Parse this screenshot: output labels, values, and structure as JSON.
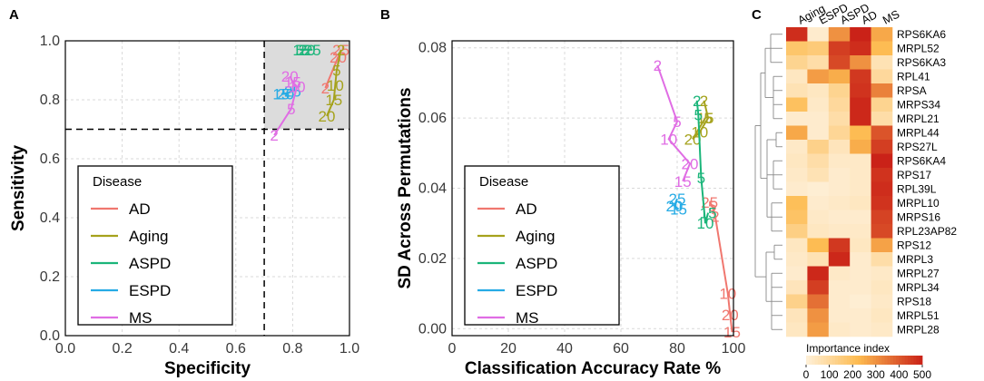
{
  "panel_letters": [
    "A",
    "B",
    "C"
  ],
  "colors": {
    "AD": "#f0776f",
    "Aging": "#a5a21c",
    "ASPD": "#1bb57a",
    "ESPD": "#26abe5",
    "MS": "#e06de4",
    "grid": "#d9d9d9",
    "shade": "#dcdcdc"
  },
  "chart_data": [
    {
      "id": "A",
      "type": "line",
      "xlabel": "Specificity",
      "ylabel": "Sensitivity",
      "xlim": [
        0.0,
        1.0
      ],
      "ylim": [
        0.0,
        1.0
      ],
      "xticks": [
        "0.0",
        "0.2",
        "0.4",
        "0.6",
        "0.8",
        "1.0"
      ],
      "yticks": [
        "0.0",
        "0.2",
        "0.4",
        "0.6",
        "0.8",
        "1.0"
      ],
      "threshold_lines": {
        "x": 0.7,
        "y": 0.7
      },
      "shaded_region": {
        "x": [
          0.7,
          1.0
        ],
        "y": [
          0.7,
          1.0
        ]
      },
      "legend": {
        "title": "Disease",
        "entries": [
          "AD",
          "Aging",
          "ASPD",
          "ESPD",
          "MS"
        ]
      },
      "series": [
        {
          "name": "AD",
          "points": [
            {
              "label": "25",
              "x": 0.97,
              "y": 0.97
            },
            {
              "label": "20",
              "x": 0.96,
              "y": 0.945
            },
            {
              "label": "2",
              "x": 0.915,
              "y": 0.84
            }
          ]
        },
        {
          "name": "Aging",
          "points": [
            {
              "label": "2",
              "x": 0.97,
              "y": 0.97
            },
            {
              "label": "5",
              "x": 0.955,
              "y": 0.9
            },
            {
              "label": "10",
              "x": 0.95,
              "y": 0.85
            },
            {
              "label": "15",
              "x": 0.945,
              "y": 0.8
            },
            {
              "label": "20",
              "x": 0.92,
              "y": 0.745
            }
          ]
        },
        {
          "name": "ASPD",
          "points": [
            {
              "label": "25",
              "x": 0.87,
              "y": 0.97
            },
            {
              "label": "20",
              "x": 0.85,
              "y": 0.97
            },
            {
              "label": "15",
              "x": 0.83,
              "y": 0.97
            },
            {
              "label": "5",
              "x": 0.825,
              "y": 0.97
            }
          ]
        },
        {
          "name": "ESPD",
          "points": [
            {
              "label": "25",
              "x": 0.8,
              "y": 0.83
            },
            {
              "label": "20",
              "x": 0.775,
              "y": 0.82
            },
            {
              "label": "15",
              "x": 0.76,
              "y": 0.82
            }
          ]
        },
        {
          "name": "MS",
          "points": [
            {
              "label": "2",
              "x": 0.735,
              "y": 0.68
            },
            {
              "label": "5",
              "x": 0.795,
              "y": 0.77
            },
            {
              "label": "10",
              "x": 0.815,
              "y": 0.845
            },
            {
              "label": "15",
              "x": 0.8,
              "y": 0.86
            },
            {
              "label": "20",
              "x": 0.79,
              "y": 0.88
            }
          ]
        }
      ]
    },
    {
      "id": "B",
      "type": "line",
      "xlabel": "Classification Accuracy Rate %",
      "ylabel": "SD Across Permutations",
      "xlim": [
        0,
        100
      ],
      "ylim": [
        -0.002,
        0.082
      ],
      "xticks": [
        "0",
        "20",
        "40",
        "60",
        "80",
        "100"
      ],
      "yticks": [
        "0.00",
        "0.02",
        "0.04",
        "0.06",
        "0.08"
      ],
      "legend": {
        "title": "Disease",
        "entries": [
          "AD",
          "Aging",
          "ASPD",
          "ESPD",
          "MS"
        ]
      },
      "series": [
        {
          "name": "AD",
          "points": [
            {
              "label": "15",
              "x": 99.5,
              "y": -0.001
            },
            {
              "label": "20",
              "x": 98.8,
              "y": 0.004
            },
            {
              "label": "10",
              "x": 98.0,
              "y": 0.01
            },
            {
              "label": "2",
              "x": 93.5,
              "y": 0.032
            },
            {
              "label": "5",
              "x": 92.5,
              "y": 0.035
            },
            {
              "label": "25",
              "x": 91.5,
              "y": 0.036
            }
          ]
        },
        {
          "name": "Aging",
          "points": [
            {
              "label": "2",
              "x": 89.5,
              "y": 0.065
            },
            {
              "label": "5",
              "x": 91.0,
              "y": 0.06
            },
            {
              "label": "10",
              "x": 88.0,
              "y": 0.056
            },
            {
              "label": "20",
              "x": 85.5,
              "y": 0.054
            },
            {
              "label": "15",
              "x": 90.0,
              "y": 0.06
            }
          ]
        },
        {
          "name": "ASPD",
          "points": [
            {
              "label": "2",
              "x": 87.0,
              "y": 0.065
            },
            {
              "label": "5",
              "x": 87.5,
              "y": 0.061
            },
            {
              "label": "5",
              "x": 88.5,
              "y": 0.043
            },
            {
              "label": "10",
              "x": 90.0,
              "y": 0.03
            },
            {
              "label": "15",
              "x": 91.0,
              "y": 0.033
            }
          ]
        },
        {
          "name": "ESPD",
          "points": [
            {
              "label": "25",
              "x": 80.0,
              "y": 0.037
            },
            {
              "label": "20",
              "x": 79.0,
              "y": 0.035
            },
            {
              "label": "15",
              "x": 80.5,
              "y": 0.034
            }
          ]
        },
        {
          "name": "MS",
          "points": [
            {
              "label": "2",
              "x": 73.0,
              "y": 0.075
            },
            {
              "label": "5",
              "x": 80.0,
              "y": 0.059
            },
            {
              "label": "10",
              "x": 77.0,
              "y": 0.054
            },
            {
              "label": "20",
              "x": 84.5,
              "y": 0.047
            },
            {
              "label": "15",
              "x": 82.0,
              "y": 0.042
            }
          ]
        }
      ]
    },
    {
      "id": "C",
      "type": "heatmap",
      "columns": [
        "Aging",
        "ESPD",
        "ASPD",
        "AD",
        "MS"
      ],
      "rows": [
        "RPS6KA6",
        "MRPL52",
        "RPS6KA3",
        "RPL41",
        "RPSA",
        "MRPS34",
        "MRPL21",
        "MRPL44",
        "RPS27L",
        "RPS6KA4",
        "RPS17",
        "RPL39L",
        "MRPL10",
        "MRPS16",
        "RPL23AP82",
        "RPS12",
        "MRPL3",
        "MRPL27",
        "MRPL34",
        "RPS18",
        "MRPL51",
        "MRPL28"
      ],
      "values": [
        [
          480,
          20,
          300,
          500,
          260
        ],
        [
          180,
          160,
          450,
          480,
          220
        ],
        [
          120,
          80,
          430,
          300,
          60
        ],
        [
          40,
          280,
          250,
          460,
          100
        ],
        [
          60,
          40,
          120,
          470,
          330
        ],
        [
          200,
          30,
          100,
          490,
          120
        ],
        [
          20,
          20,
          80,
          490,
          80
        ],
        [
          260,
          20,
          110,
          220,
          410
        ],
        [
          30,
          130,
          50,
          250,
          450
        ],
        [
          40,
          80,
          30,
          30,
          500
        ],
        [
          30,
          60,
          20,
          30,
          470
        ],
        [
          20,
          10,
          20,
          30,
          480
        ],
        [
          210,
          20,
          30,
          40,
          470
        ],
        [
          190,
          30,
          20,
          20,
          440
        ],
        [
          140,
          40,
          30,
          30,
          430
        ],
        [
          40,
          220,
          460,
          40,
          270
        ],
        [
          30,
          60,
          490,
          20,
          80
        ],
        [
          20,
          490,
          30,
          20,
          30
        ],
        [
          50,
          450,
          20,
          20,
          40
        ],
        [
          130,
          360,
          20,
          10,
          30
        ],
        [
          50,
          300,
          20,
          20,
          40
        ],
        [
          40,
          280,
          30,
          20,
          30
        ]
      ],
      "colorbar": {
        "title": "Importance index",
        "ticks": [
          "0",
          "100",
          "200",
          "300",
          "400",
          "500"
        ],
        "range": [
          0,
          500
        ]
      }
    }
  ]
}
